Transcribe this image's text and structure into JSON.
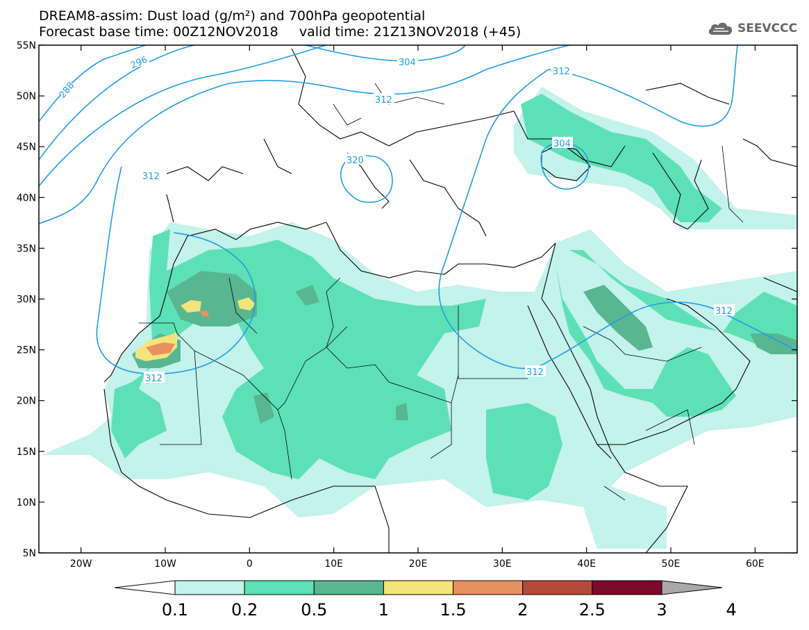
{
  "title": {
    "line1": "DREAM8-assim: Dust load (g/m²) and 700hPa geopotential",
    "line2": "Forecast base time: 00Z12NOV2018     valid time: 21Z13NOV2018 (+45)"
  },
  "logo": {
    "text": "SEEVCCC",
    "icon": "cloud-icon"
  },
  "map": {
    "lon_range": [
      -25,
      65
    ],
    "lat_range": [
      5,
      55
    ],
    "lat_labels": [
      "55N",
      "50N",
      "45N",
      "40N",
      "35N",
      "30N",
      "25N",
      "20N",
      "15N",
      "10N",
      "5N"
    ],
    "lon_labels": [
      "20W",
      "10W",
      "0",
      "10E",
      "20E",
      "30E",
      "40E",
      "50E",
      "60E"
    ]
  },
  "contours": {
    "labels": [
      "296",
      "288",
      "304",
      "312",
      "312",
      "312",
      "312",
      "320",
      "304",
      "312",
      "312"
    ]
  },
  "colorbar": {
    "levels": [
      "0.1",
      "0.2",
      "0.5",
      "1",
      "1.5",
      "2",
      "2.5",
      "3",
      "4"
    ],
    "colors": [
      "#c4f2ec",
      "#5ee0b7",
      "#58b691",
      "#f3e47c",
      "#e9905f",
      "#b44a3a",
      "#7e0a2a",
      "#8c6a9a",
      "#a9a9a9"
    ]
  }
}
